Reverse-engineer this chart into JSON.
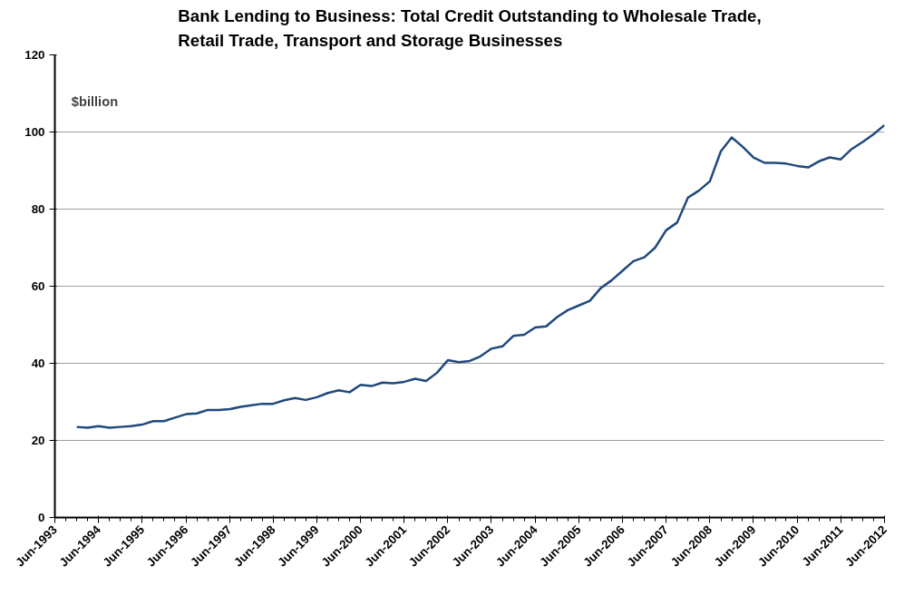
{
  "chart_data": {
    "type": "line",
    "title": "Bank Lending to Business: Total Credit Outstanding to Wholesale Trade,\nRetail Trade, Transport and Storage Businesses",
    "annotations": [
      "$billion"
    ],
    "x": [
      "1993-12",
      "1994-03",
      "1994-06",
      "1994-09",
      "1994-12",
      "1995-03",
      "1995-06",
      "1995-09",
      "1995-12",
      "1996-03",
      "1996-06",
      "1996-09",
      "1996-12",
      "1997-03",
      "1997-06",
      "1997-09",
      "1997-12",
      "1998-03",
      "1998-06",
      "1998-09",
      "1998-12",
      "1999-03",
      "1999-06",
      "1999-09",
      "1999-12",
      "2000-03",
      "2000-06",
      "2000-09",
      "2000-12",
      "2001-03",
      "2001-06",
      "2001-09",
      "2001-12",
      "2002-03",
      "2002-06",
      "2002-09",
      "2002-12",
      "2003-03",
      "2003-06",
      "2003-09",
      "2003-12",
      "2004-03",
      "2004-06",
      "2004-09",
      "2004-12",
      "2005-03",
      "2005-06",
      "2005-09",
      "2005-12",
      "2006-03",
      "2006-06",
      "2006-09",
      "2006-12",
      "2007-03",
      "2007-06",
      "2007-09",
      "2007-12",
      "2008-03",
      "2008-06",
      "2008-09",
      "2008-12",
      "2009-03",
      "2009-06",
      "2009-09",
      "2009-12",
      "2010-03",
      "2010-06",
      "2010-09",
      "2010-12",
      "2011-03",
      "2011-06",
      "2011-09",
      "2011-12",
      "2012-03",
      "2012-06"
    ],
    "series": [
      {
        "color": "#1f497d",
        "values": [
          23.5,
          23.3,
          23.7,
          23.3,
          23.5,
          23.7,
          24.1,
          25.0,
          25.0,
          25.9,
          26.8,
          27.0,
          27.9,
          27.9,
          28.1,
          28.7,
          29.1,
          29.5,
          29.5,
          30.4,
          31.0,
          30.5,
          31.2,
          32.3,
          33.0,
          32.5,
          34.4,
          34.1,
          35.0,
          34.8,
          35.2,
          36.0,
          35.4,
          37.5,
          40.8,
          40.3,
          40.6,
          41.8,
          43.8,
          44.4,
          47.1,
          47.4,
          49.3,
          49.6,
          52.0,
          53.8,
          55.0,
          56.2,
          59.5,
          61.5,
          64.0,
          66.5,
          67.5,
          70.0,
          74.5,
          76.5,
          83.0,
          84.8,
          87.2,
          95.0,
          98.6,
          96.2,
          93.4,
          92.0,
          92.0,
          91.8,
          91.2,
          90.8,
          92.4,
          93.4,
          92.9,
          95.6,
          97.4,
          99.4,
          101.8
        ]
      }
    ],
    "xlim": [
      "1993-06",
      "2012-06"
    ],
    "xticks": [
      {
        "value": "1993-06",
        "label": "Jun-1993"
      },
      {
        "value": "1994-06",
        "label": "Jun-1994"
      },
      {
        "value": "1995-06",
        "label": "Jun-1995"
      },
      {
        "value": "1996-06",
        "label": "Jun-1996"
      },
      {
        "value": "1997-06",
        "label": "Jun-1997"
      },
      {
        "value": "1998-06",
        "label": "Jun-1998"
      },
      {
        "value": "1999-06",
        "label": "Jun-1999"
      },
      {
        "value": "2000-06",
        "label": "Jun-2000"
      },
      {
        "value": "2001-06",
        "label": "Jun-2001"
      },
      {
        "value": "2002-06",
        "label": "Jun-2002"
      },
      {
        "value": "2003-06",
        "label": "Jun-2003"
      },
      {
        "value": "2004-06",
        "label": "Jun-2004"
      },
      {
        "value": "2005-06",
        "label": "Jun-2005"
      },
      {
        "value": "2006-06",
        "label": "Jun-2006"
      },
      {
        "value": "2007-06",
        "label": "Jun-2007"
      },
      {
        "value": "2008-06",
        "label": "Jun-2008"
      },
      {
        "value": "2009-06",
        "label": "Jun-2009"
      },
      {
        "value": "2010-06",
        "label": "Jun-2010"
      },
      {
        "value": "2011-06",
        "label": "Jun-2011"
      },
      {
        "value": "2012-06",
        "label": "Jun-2012"
      }
    ],
    "ylim": [
      0,
      120
    ],
    "yticks": [
      0,
      20,
      40,
      60,
      80,
      100,
      120
    ],
    "grid": "y",
    "marker": "none",
    "line_style": "solid"
  }
}
